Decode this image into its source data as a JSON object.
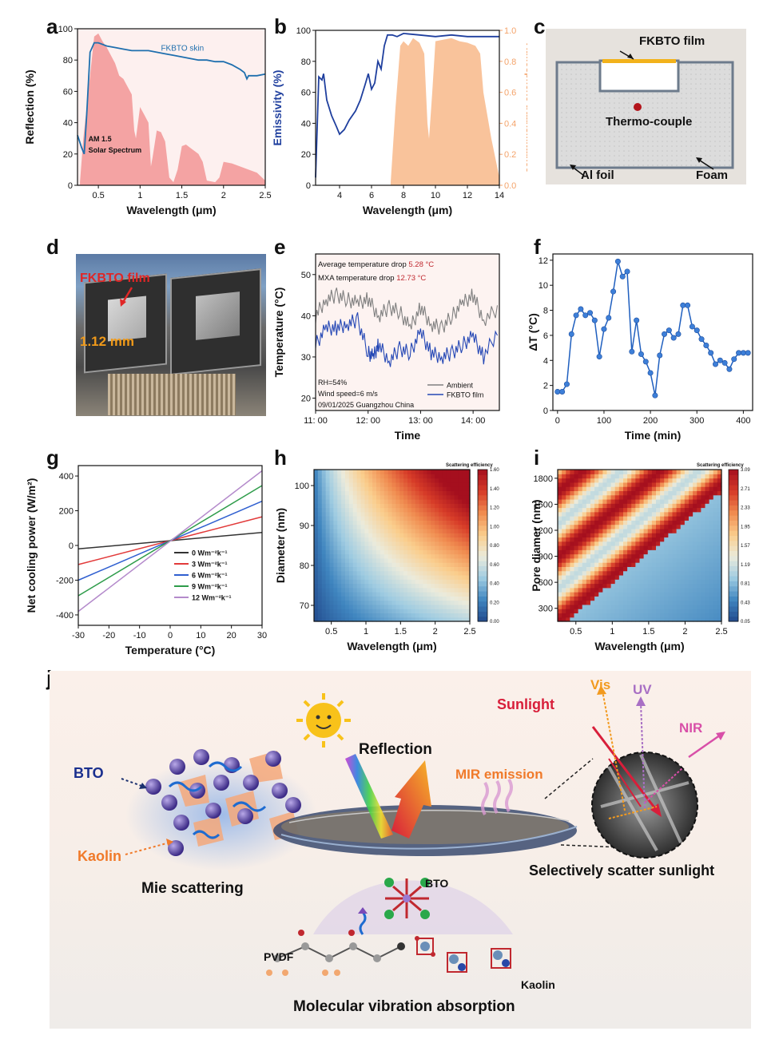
{
  "panel_letters": {
    "a": "a",
    "b": "b",
    "c": "c",
    "d": "d",
    "e": "e",
    "f": "f",
    "g": "g",
    "h": "h",
    "i": "i",
    "j": "j"
  },
  "chart_data": [
    {
      "id": "a",
      "type": "line",
      "xlabel": "Wavelength (μm)",
      "ylabel": "Reflection (%)",
      "xlim": [
        0.25,
        2.5
      ],
      "ylim": [
        0,
        100
      ],
      "xticks": [
        0.5,
        1.0,
        1.5,
        2.0,
        2.5
      ],
      "yticks": [
        0,
        20,
        40,
        60,
        80,
        100
      ],
      "series": [
        {
          "name": "FKBTO skin",
          "color": "#1f6fae",
          "x": [
            0.25,
            0.3,
            0.33,
            0.36,
            0.4,
            0.45,
            0.5,
            0.6,
            0.7,
            0.8,
            0.9,
            1.0,
            1.1,
            1.2,
            1.3,
            1.4,
            1.5,
            1.6,
            1.7,
            1.8,
            1.9,
            2.0,
            2.1,
            2.2,
            2.25,
            2.28,
            2.3,
            2.4,
            2.5
          ],
          "y": [
            32,
            24,
            20,
            45,
            85,
            91,
            91,
            89,
            88,
            87,
            86,
            86,
            86,
            85,
            84,
            83,
            82,
            81,
            80,
            80,
            79,
            79,
            77,
            74,
            72,
            68,
            70,
            70,
            71
          ]
        }
      ],
      "solar_spectrum": {
        "label_line1": "AM 1.5",
        "label_line2": "Solar Spectrum",
        "color": "#f08a8a",
        "x": [
          0.28,
          0.32,
          0.36,
          0.4,
          0.45,
          0.5,
          0.55,
          0.6,
          0.7,
          0.75,
          0.8,
          0.9,
          0.93,
          0.95,
          1.0,
          1.05,
          1.1,
          1.13,
          1.15,
          1.2,
          1.25,
          1.3,
          1.35,
          1.4,
          1.45,
          1.5,
          1.55,
          1.6,
          1.7,
          1.75,
          1.8,
          1.9,
          1.95,
          2.0,
          2.1,
          2.2,
          2.3,
          2.4,
          2.5
        ],
        "y": [
          2,
          30,
          50,
          70,
          95,
          97,
          92,
          88,
          78,
          70,
          68,
          58,
          35,
          30,
          50,
          45,
          40,
          12,
          18,
          35,
          34,
          28,
          5,
          2,
          10,
          25,
          26,
          24,
          20,
          15,
          3,
          2,
          5,
          15,
          14,
          12,
          10,
          8,
          3
        ]
      }
    },
    {
      "id": "b",
      "type": "line",
      "xlabel": "Wavelength (μm)",
      "ylabel": "Emissivity (%)",
      "y2label": "Atmospheric traansmittance",
      "xlim": [
        2.5,
        14
      ],
      "ylim": [
        0,
        100
      ],
      "y2lim": [
        0,
        1.0
      ],
      "xticks": [
        4,
        6,
        8,
        10,
        12,
        14
      ],
      "yticks": [
        0,
        20,
        40,
        60,
        80,
        100
      ],
      "y2ticks": [
        0.0,
        0.2,
        0.4,
        0.6,
        0.8,
        1.0
      ],
      "series": [
        {
          "name": "Emissivity",
          "color": "#1f3f9e",
          "x": [
            2.5,
            2.7,
            2.9,
            3.0,
            3.2,
            3.5,
            3.8,
            4.0,
            4.3,
            4.6,
            5.0,
            5.3,
            5.6,
            5.8,
            6.0,
            6.2,
            6.4,
            6.6,
            6.8,
            7.0,
            7.3,
            7.6,
            8.0,
            9,
            10,
            11,
            12,
            13,
            14
          ],
          "y": [
            5,
            70,
            68,
            72,
            55,
            45,
            38,
            33,
            36,
            42,
            48,
            55,
            65,
            72,
            62,
            66,
            80,
            75,
            90,
            97,
            97,
            96,
            98,
            97,
            96,
            97,
            96,
            96,
            96
          ]
        }
      ],
      "transmittance": {
        "color": "#f8b98a",
        "x": [
          7.2,
          7.5,
          7.8,
          8.0,
          8.3,
          8.6,
          9.0,
          9.3,
          9.5,
          9.6,
          9.8,
          10.0,
          10.5,
          11,
          11.5,
          12,
          12.5,
          12.8,
          13,
          13.5,
          14
        ],
        "y": [
          0.02,
          0.5,
          0.9,
          0.93,
          0.9,
          0.95,
          0.92,
          0.85,
          0.4,
          0.3,
          0.6,
          0.93,
          0.94,
          0.95,
          0.93,
          0.92,
          0.9,
          0.85,
          0.6,
          0.3,
          0.05
        ]
      }
    },
    {
      "id": "e",
      "type": "line",
      "xlabel": "Time",
      "ylabel": "Temperature (°C)",
      "xlim": [
        11.0,
        14.5
      ],
      "ylim": [
        17,
        55
      ],
      "xticks": [
        "11: 00",
        "12: 00",
        "13: 00",
        "14: 00"
      ],
      "xtick_values": [
        11,
        12,
        13,
        14
      ],
      "yticks": [
        20,
        30,
        40,
        50
      ],
      "series": [
        {
          "name": "Ambient",
          "color": "#808080",
          "x": [
            11.0,
            11.2,
            11.4,
            11.6,
            11.8,
            12.0,
            12.2,
            12.4,
            12.6,
            12.8,
            13.0,
            13.2,
            13.4,
            13.6,
            13.8,
            14.0,
            14.2,
            14.5
          ],
          "y": [
            40,
            44,
            45,
            44,
            43,
            44,
            40,
            42,
            41,
            37,
            42,
            38,
            37,
            40,
            43,
            45,
            39,
            42
          ]
        },
        {
          "name": "FKBTO  film",
          "color": "#2447b5",
          "x": [
            11.0,
            11.2,
            11.4,
            11.6,
            11.8,
            12.0,
            12.1,
            12.2,
            12.4,
            12.6,
            12.8,
            13.0,
            13.2,
            13.4,
            13.6,
            13.8,
            14.0,
            14.2,
            14.5
          ],
          "y": [
            33,
            37,
            37,
            38,
            39,
            31,
            30,
            33,
            29,
            32,
            31,
            36,
            31,
            30,
            31,
            33,
            35,
            30,
            37
          ]
        }
      ],
      "annotations": {
        "avg_label": "Average temperature drop ",
        "avg_value": "5.28 °C",
        "max_label": "MXA temperature drop ",
        "max_value": "12.73 °C",
        "rh": "RH=54%",
        "wind": "Wind speed=6 m/s",
        "date": "09/01/2025 Guangzhou China",
        "value_color": "#c0282f"
      }
    },
    {
      "id": "f",
      "type": "line",
      "xlabel": "Time (min)",
      "ylabel": "ΔT (°C)",
      "xlim": [
        -10,
        420
      ],
      "ylim": [
        0,
        12.5
      ],
      "xticks": [
        0,
        100,
        200,
        300,
        400
      ],
      "yticks": [
        0,
        2,
        4,
        6,
        8,
        10,
        12
      ],
      "series": [
        {
          "name": "",
          "color": "#1f5fbf",
          "x": [
            0,
            10,
            20,
            30,
            40,
            50,
            60,
            70,
            80,
            90,
            100,
            110,
            120,
            130,
            140,
            150,
            160,
            170,
            180,
            190,
            200,
            210,
            220,
            230,
            240,
            250,
            260,
            270,
            280,
            290,
            300,
            310,
            320,
            330,
            340,
            350,
            360,
            370,
            380,
            390,
            400,
            410
          ],
          "y": [
            1.5,
            1.5,
            2.1,
            6.1,
            7.6,
            8.1,
            7.6,
            7.8,
            7.2,
            4.3,
            6.5,
            7.4,
            9.5,
            11.9,
            10.7,
            11.1,
            4.7,
            7.2,
            4.5,
            3.9,
            3.0,
            1.2,
            4.4,
            6.1,
            6.4,
            5.8,
            6.1,
            8.4,
            8.4,
            6.7,
            6.4,
            5.7,
            5.2,
            4.6,
            3.7,
            4.0,
            3.8,
            3.3,
            4.1,
            4.6,
            4.6,
            4.6
          ]
        }
      ]
    },
    {
      "id": "g",
      "type": "line",
      "xlabel": "Temperature (°C)",
      "ylabel": "Net cooling power (W/m²)",
      "xlim": [
        -30,
        30
      ],
      "ylim": [
        -460,
        460
      ],
      "xticks": [
        -30,
        -20,
        -10,
        0,
        10,
        20,
        30
      ],
      "yticks": [
        -400,
        -200,
        0,
        200,
        400
      ],
      "series": [
        {
          "name": "0 Wm⁻²k⁻¹",
          "color": "#333333",
          "x": [
            -30,
            30
          ],
          "y": [
            -20,
            75
          ]
        },
        {
          "name": "3 Wm⁻²k⁻¹",
          "color": "#e23a3a",
          "x": [
            -30,
            30
          ],
          "y": [
            -110,
            165
          ]
        },
        {
          "name": "6 Wm⁻²k⁻¹",
          "color": "#2f5fd0",
          "x": [
            -30,
            30
          ],
          "y": [
            -200,
            255
          ]
        },
        {
          "name": "9 Wm⁻²k⁻¹",
          "color": "#2e9c4a",
          "x": [
            -30,
            30
          ],
          "y": [
            -290,
            345
          ]
        },
        {
          "name": "12 Wm⁻²k⁻¹",
          "color": "#b48acb",
          "x": [
            -30,
            30
          ],
          "y": [
            -380,
            430
          ]
        }
      ]
    },
    {
      "id": "h",
      "type": "heatmap",
      "title": "Scattering efficiency",
      "xlabel": "Wavelength (μm)",
      "ylabel": "Diameter (nm)",
      "xlim": [
        0.25,
        2.5
      ],
      "ylim": [
        66,
        104
      ],
      "xticks": [
        0.5,
        1.0,
        1.5,
        2.0,
        2.5
      ],
      "yticks": [
        70,
        80,
        90,
        100
      ],
      "colorbar_ticks": [
        "0.00",
        "0.20",
        "0.40",
        "0.60",
        "0.80",
        "1.00",
        "1.20",
        "1.40",
        "1.60"
      ]
    },
    {
      "id": "i",
      "type": "heatmap",
      "title": "Scattering efficiency",
      "xlabel": "Wavelength (μm)",
      "ylabel": "Pore diamer (nm)",
      "xlim": [
        0.25,
        2.5
      ],
      "ylim": [
        150,
        1900
      ],
      "xticks": [
        0.5,
        1.0,
        1.5,
        2.0,
        2.5
      ],
      "yticks": [
        300,
        600,
        900,
        1200,
        1500,
        1800
      ],
      "colorbar_ticks": [
        "0.05",
        "0.43",
        "0.81",
        "1.19",
        "1.57",
        "1.95",
        "2.33",
        "2.71",
        "3.09"
      ]
    }
  ],
  "panel_c": {
    "film": "FKBTO film",
    "thermocouple": "Thermo-couple",
    "foil": "Al foil",
    "foam": "Foam"
  },
  "panel_d": {
    "film": "FKBTO film",
    "thickness": "1.12 mm"
  },
  "panel_j": {
    "bto": "BTO",
    "kaolin": "Kaolin",
    "mie": "Mie scattering",
    "reflection": "Reflection",
    "mir": "MIR emission",
    "sunlight": "Sunlight",
    "vis": "Vis",
    "uv": "UV",
    "nir": "NIR",
    "selective": "Selectively scatter sunlight",
    "bto2": "BTO",
    "pvdf": "PVDF",
    "kaolin2": "Kaolin",
    "molecular": "Molecular vibration absorption"
  }
}
